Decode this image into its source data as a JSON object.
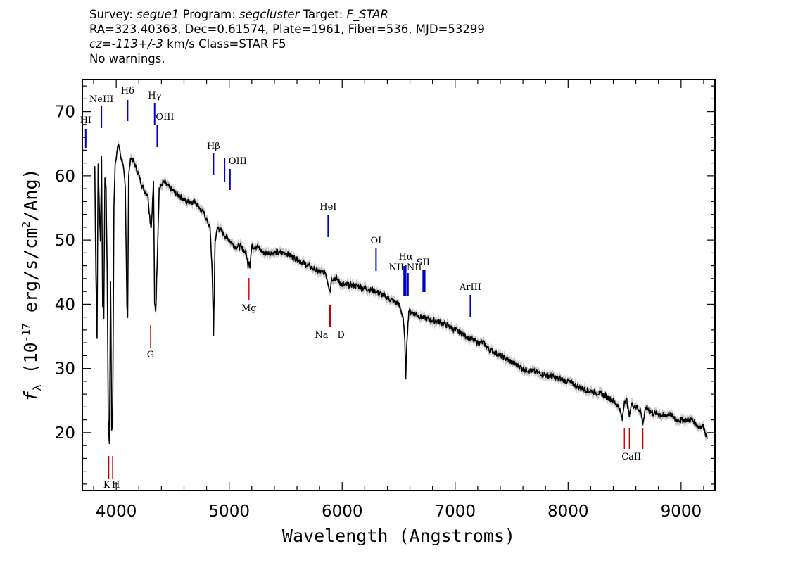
{
  "header": {
    "line1": {
      "survey_label": "Survey:",
      "survey_value": "segue1",
      "program_label": "Program:",
      "program_value": "segcluster",
      "target_label": "Target:",
      "target_value": "F_STAR"
    },
    "line2": "RA=323.40363, Dec=0.61574, Plate=1961, Fiber=536, MJD=53299",
    "line3": {
      "cz_label": "cz=",
      "cz_value": "-113+/-3",
      "cz_units_class": "km/s Class=STAR F5"
    },
    "line4": "No warnings."
  },
  "chart_data": {
    "type": "line",
    "xlabel": "Wavelength (Angstroms)",
    "ylabel": "f_λ (10^-17 erg/s/cm^2/Ang)",
    "xlim": [
      3700,
      9300
    ],
    "ylim": [
      11,
      75
    ],
    "xticks": [
      4000,
      5000,
      6000,
      7000,
      8000,
      9000
    ],
    "yticks": [
      20,
      30,
      40,
      50,
      60,
      70
    ],
    "series": [
      {
        "role": "flux",
        "color": "#000000",
        "x": [
          3810,
          3820,
          3830,
          3840,
          3850,
          3860,
          3870,
          3880,
          3890,
          3900,
          3910,
          3920,
          3930,
          3940,
          3950,
          3960,
          3968,
          3980,
          3990,
          4000,
          4010,
          4020,
          4040,
          4060,
          4080,
          4095,
          4101,
          4110,
          4130,
          4160,
          4200,
          4240,
          4280,
          4300,
          4310,
          4330,
          4340,
          4350,
          4380,
          4420,
          4480,
          4550,
          4620,
          4700,
          4780,
          4830,
          4850,
          4861,
          4875,
          4900,
          4950,
          5000,
          5050,
          5100,
          5150,
          5167,
          5175,
          5183,
          5200,
          5250,
          5300,
          5400,
          5500,
          5600,
          5700,
          5800,
          5850,
          5880,
          5893,
          5905,
          5950,
          6000,
          6100,
          6200,
          6300,
          6400,
          6500,
          6540,
          6555,
          6563,
          6572,
          6590,
          6650,
          6700,
          6800,
          6900,
          7000,
          7100,
          7150,
          7200,
          7250,
          7300,
          7400,
          7500,
          7600,
          7700,
          7800,
          7900,
          8000,
          8100,
          8200,
          8300,
          8400,
          8450,
          8480,
          8498,
          8520,
          8542,
          8560,
          8600,
          8640,
          8662,
          8690,
          8750,
          8800,
          8850,
          8900,
          8950,
          9000,
          9050,
          9100,
          9150,
          9200,
          9230
        ],
        "y": [
          61.5,
          45,
          35,
          62,
          55,
          50,
          63,
          40,
          38,
          60,
          58,
          45,
          22,
          18,
          44,
          20,
          22,
          55,
          62,
          63,
          64,
          65,
          63,
          62,
          58,
          40,
          38,
          60,
          63,
          62,
          60,
          58,
          57,
          53,
          52,
          59,
          40,
          39,
          58,
          59,
          58,
          57,
          56,
          56,
          54,
          52,
          45,
          35,
          50,
          52,
          51,
          50,
          49,
          49,
          48,
          46,
          47,
          46,
          49,
          49,
          48,
          48,
          48,
          47,
          46,
          45,
          45,
          43,
          42,
          44,
          44,
          43,
          43,
          42.5,
          42,
          41,
          40,
          38,
          34,
          28,
          34,
          39,
          38.5,
          38,
          37.5,
          37,
          36,
          35,
          34.5,
          34,
          34,
          33,
          32,
          31,
          30,
          29.5,
          29,
          28.5,
          28,
          27,
          26.5,
          26,
          25,
          24,
          22,
          25,
          25,
          22.5,
          24.5,
          24,
          23.5,
          21.5,
          24,
          23,
          23,
          22.5,
          23,
          22,
          22,
          22,
          22,
          21,
          21,
          19
        ]
      }
    ],
    "emission_lines": [
      {
        "label": "HI",
        "x": 3730
      },
      {
        "label": "NeIII",
        "x": 3869
      },
      {
        "label": "Hδ",
        "x": 4101
      },
      {
        "label": "Hγ",
        "x": 4340
      },
      {
        "label": "OIII",
        "x": 4363
      },
      {
        "label": "Hβ",
        "x": 4861
      },
      {
        "label": "OIII",
        "x": 4959
      },
      {
        "label": "OIII",
        "x": 5007
      },
      {
        "label": "HeI",
        "x": 5876
      },
      {
        "label": "OI",
        "x": 6300
      },
      {
        "label": "NII",
        "x": 6548
      },
      {
        "label": "Hα",
        "x": 6563
      },
      {
        "label": "NII",
        "x": 6583
      },
      {
        "label": "SII",
        "x": 6717
      },
      {
        "label": "SII",
        "x": 6731
      },
      {
        "label": "ArIII",
        "x": 7135
      }
    ],
    "absorption_lines": [
      {
        "label": "K",
        "x": 3934
      },
      {
        "label": "H",
        "x": 3968
      },
      {
        "label": "G",
        "x": 4304
      },
      {
        "label": "Mg",
        "x": 5175
      },
      {
        "label": "Na",
        "x": 5890
      },
      {
        "label": "D",
        "x": 5896
      },
      {
        "label": "CaII",
        "x": 8498
      },
      {
        "label": "CaII",
        "x": 8542
      },
      {
        "label": "CaII",
        "x": 8662
      }
    ],
    "colors": {
      "spectrum": "#000000",
      "error_band": "#bbbbbb",
      "emission": "#0000cc",
      "absorption": "#cc0000"
    }
  }
}
